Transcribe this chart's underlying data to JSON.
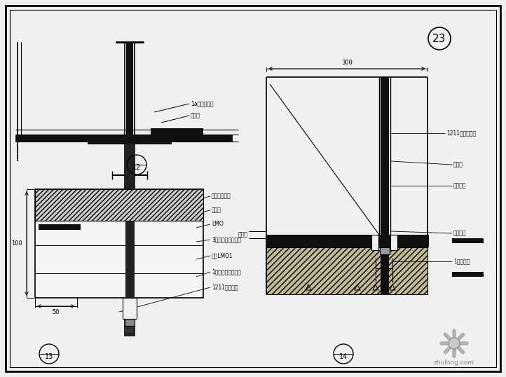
{
  "bg_color": "#e8e8e8",
  "paper_color": "#f0f0f0",
  "line_color": "#000000",
  "hatch_color": "#888888",
  "labels": {
    "label_1a": "1a原地面材料",
    "label_wall": "墙体测",
    "label_float": "浮洚剂填充物",
    "label_juqiao": "居巧水",
    "label_LMO": "LMO",
    "label_bolt": "3厘不锈钙拉答枇柶",
    "label_mold": "模板LMO1",
    "label_wrap": "1熱溶上夏包拉答柶",
    "label_1211": "1211明化嵌层",
    "label_1211b": "1211压明化嵌层",
    "label_stone": "石材板",
    "label_glue": "结构胶等",
    "label_heat": "导熱皮板",
    "label_spring": "1厘薄弹片",
    "label_huachuang": "花窗台",
    "label_dim300": "300",
    "label_dim100": "100",
    "label_dim50": "50",
    "watermark": "zhulong.com"
  }
}
